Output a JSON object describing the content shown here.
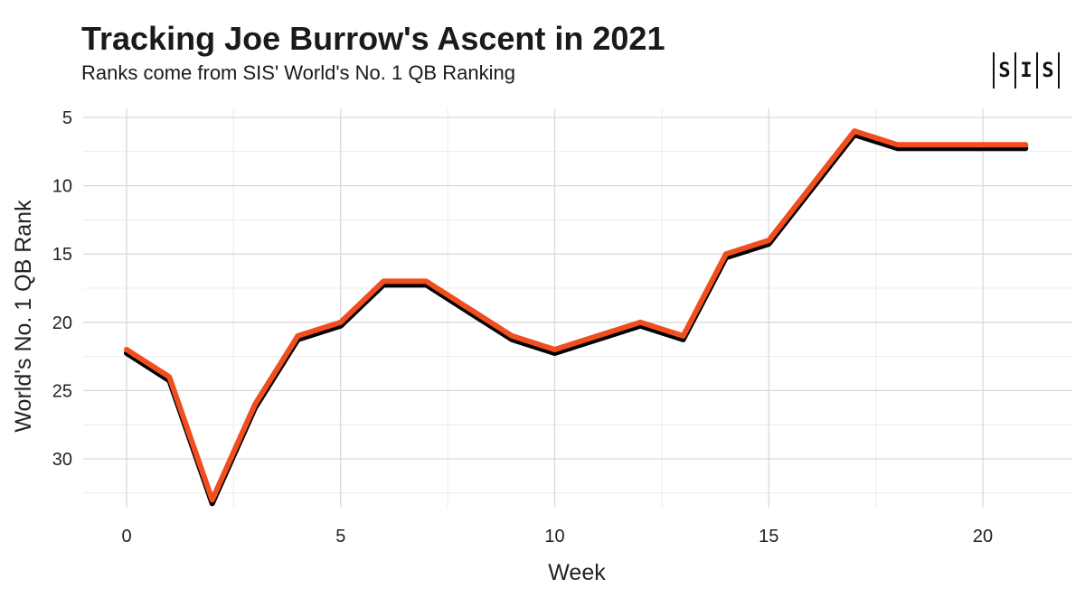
{
  "chart_data": {
    "type": "line",
    "title": "Tracking Joe Burrow's Ascent in 2021",
    "subtitle": "Ranks come from SIS' World's No. 1 QB Ranking",
    "xlabel": "Week",
    "ylabel": "World's No. 1 QB Rank",
    "x_ticks": [
      0,
      5,
      10,
      15,
      20
    ],
    "y_ticks": [
      5,
      10,
      15,
      20,
      25,
      30
    ],
    "xlim": [
      -0.5,
      22
    ],
    "ylim": [
      5,
      33
    ],
    "y_reversed": true,
    "grid": true,
    "series": [
      {
        "x": [
          0,
          1,
          2,
          3,
          4,
          5,
          6,
          7,
          8,
          9,
          10,
          11,
          12,
          13,
          14,
          15,
          16,
          17,
          18,
          19,
          20,
          21
        ],
        "values": [
          22,
          24,
          33,
          26,
          21,
          20,
          17,
          17,
          19,
          21,
          22,
          21,
          20,
          21,
          15,
          14,
          10,
          6,
          7,
          7,
          7,
          7
        ],
        "color": "#f04e1e",
        "shadow_color": "#000000"
      }
    ]
  },
  "logo": {
    "letters": [
      "S",
      "I",
      "S"
    ]
  }
}
